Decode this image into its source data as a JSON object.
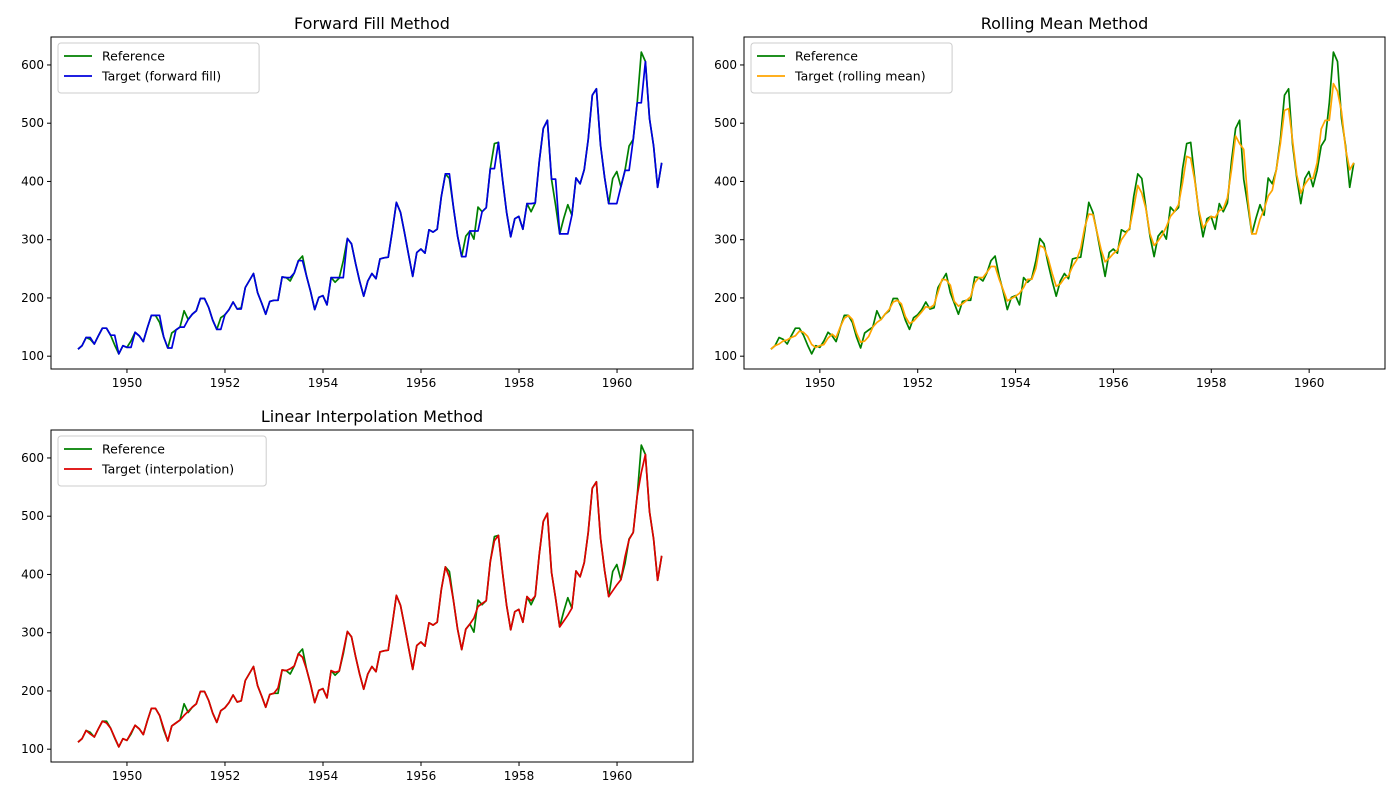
{
  "chart_data": [
    {
      "type": "line",
      "title": "Forward Fill Method",
      "xlabel": "",
      "ylabel": "",
      "x_start": 1949,
      "x_step": 0.0833,
      "xlim": [
        1948.45,
        1961.55
      ],
      "ylim": [
        78,
        648
      ],
      "xticks": [
        1950,
        1952,
        1954,
        1956,
        1958,
        1960
      ],
      "yticks": [
        100,
        200,
        300,
        400,
        500,
        600
      ],
      "grid": false,
      "legend_position": "top-left",
      "series": [
        {
          "name": "Reference",
          "color": "#008000",
          "values": [
            112,
            118,
            132,
            129,
            121,
            135,
            148,
            148,
            136,
            119,
            104,
            118,
            115,
            126,
            141,
            135,
            125,
            149,
            170,
            170,
            158,
            133,
            114,
            140,
            145,
            150,
            178,
            163,
            172,
            178,
            199,
            199,
            184,
            162,
            146,
            166,
            171,
            180,
            193,
            181,
            183,
            218,
            230,
            242,
            209,
            191,
            172,
            194,
            196,
            196,
            236,
            235,
            229,
            243,
            264,
            272,
            237,
            211,
            180,
            201,
            204,
            188,
            235,
            227,
            234,
            264,
            302,
            293,
            259,
            229,
            203,
            229,
            242,
            233,
            267,
            269,
            270,
            315,
            364,
            347,
            312,
            274,
            237,
            278,
            284,
            277,
            317,
            313,
            318,
            374,
            413,
            405,
            355,
            306,
            271,
            306,
            315,
            301,
            356,
            348,
            355,
            422,
            465,
            467,
            404,
            347,
            305,
            336,
            340,
            318,
            362,
            348,
            363,
            435,
            491,
            505,
            404,
            359,
            310,
            337,
            360,
            342,
            406,
            396,
            420,
            472,
            548,
            559,
            463,
            407,
            362,
            405,
            417,
            391,
            419,
            461,
            472,
            535,
            622,
            606,
            508,
            461,
            390,
            432
          ]
        },
        {
          "name": "Target (forward fill)",
          "color": "#0000dd",
          "values": [
            112,
            118,
            132,
            132,
            121,
            135,
            148,
            148,
            136,
            136,
            104,
            118,
            115,
            115,
            141,
            135,
            125,
            149,
            170,
            170,
            170,
            133,
            114,
            114,
            145,
            150,
            150,
            163,
            172,
            178,
            199,
            199,
            184,
            162,
            146,
            146,
            171,
            180,
            193,
            181,
            181,
            218,
            230,
            242,
            209,
            191,
            172,
            194,
            196,
            196,
            236,
            235,
            235,
            243,
            264,
            264,
            237,
            211,
            180,
            201,
            204,
            188,
            235,
            235,
            235,
            235,
            302,
            293,
            259,
            229,
            203,
            229,
            242,
            233,
            267,
            269,
            270,
            315,
            364,
            347,
            312,
            274,
            237,
            278,
            284,
            277,
            317,
            313,
            318,
            374,
            413,
            413,
            355,
            306,
            271,
            271,
            315,
            315,
            315,
            348,
            355,
            422,
            422,
            467,
            404,
            347,
            305,
            336,
            340,
            318,
            362,
            362,
            363,
            435,
            491,
            505,
            404,
            404,
            310,
            310,
            310,
            342,
            406,
            396,
            420,
            472,
            548,
            559,
            463,
            407,
            362,
            362,
            362,
            391,
            419,
            419,
            472,
            535,
            535,
            606,
            508,
            461,
            390,
            432
          ]
        }
      ]
    },
    {
      "type": "line",
      "title": "Rolling Mean Method",
      "xlabel": "",
      "ylabel": "",
      "x_start": 1949,
      "x_step": 0.0833,
      "xlim": [
        1948.45,
        1961.55
      ],
      "ylim": [
        78,
        648
      ],
      "xticks": [
        1950,
        1952,
        1954,
        1956,
        1958,
        1960
      ],
      "yticks": [
        100,
        200,
        300,
        400,
        500,
        600
      ],
      "grid": false,
      "legend_position": "top-left",
      "series": [
        {
          "name": "Reference",
          "color": "#008000",
          "values": [
            112,
            118,
            132,
            129,
            121,
            135,
            148,
            148,
            136,
            119,
            104,
            118,
            115,
            126,
            141,
            135,
            125,
            149,
            170,
            170,
            158,
            133,
            114,
            140,
            145,
            150,
            178,
            163,
            172,
            178,
            199,
            199,
            184,
            162,
            146,
            166,
            171,
            180,
            193,
            181,
            183,
            218,
            230,
            242,
            209,
            191,
            172,
            194,
            196,
            196,
            236,
            235,
            229,
            243,
            264,
            272,
            237,
            211,
            180,
            201,
            204,
            188,
            235,
            227,
            234,
            264,
            302,
            293,
            259,
            229,
            203,
            229,
            242,
            233,
            267,
            269,
            270,
            315,
            364,
            347,
            312,
            274,
            237,
            278,
            284,
            277,
            317,
            313,
            318,
            374,
            413,
            405,
            355,
            306,
            271,
            306,
            315,
            301,
            356,
            348,
            355,
            422,
            465,
            467,
            404,
            347,
            305,
            336,
            340,
            318,
            362,
            348,
            363,
            435,
            491,
            505,
            404,
            359,
            310,
            337,
            360,
            342,
            406,
            396,
            420,
            472,
            548,
            559,
            463,
            407,
            362,
            405,
            417,
            391,
            419,
            461,
            472,
            535,
            622,
            606,
            508,
            461,
            390,
            432
          ]
        },
        {
          "name": "Target (rolling mean)",
          "color": "#ffa500",
          "values": [
            112,
            118,
            121,
            126,
            128,
            132,
            135,
            143,
            141,
            134,
            120,
            115,
            118,
            120,
            131,
            138,
            132,
            150,
            165,
            170,
            163,
            140,
            124,
            126,
            134,
            150,
            158,
            163,
            172,
            180,
            193,
            196,
            190,
            168,
            156,
            160,
            168,
            176,
            185,
            183,
            188,
            210,
            232,
            231,
            222,
            194,
            186,
            190,
            196,
            202,
            226,
            235,
            235,
            244,
            254,
            254,
            232,
            214,
            195,
            199,
            203,
            208,
            218,
            232,
            232,
            251,
            290,
            286,
            268,
            242,
            220,
            224,
            234,
            238,
            254,
            265,
            285,
            322,
            344,
            343,
            313,
            283,
            262,
            268,
            276,
            282,
            300,
            310,
            320,
            355,
            393,
            380,
            353,
            310,
            290,
            298,
            308,
            322,
            340,
            348,
            360,
            398,
            443,
            440,
            401,
            350,
            320,
            330,
            340,
            338,
            350,
            353,
            372,
            420,
            478,
            465,
            455,
            370,
            310,
            310,
            335,
            352,
            375,
            385,
            420,
            465,
            522,
            525,
            470,
            412,
            380,
            395,
            405,
            405,
            432,
            490,
            505,
            505,
            568,
            555,
            520,
            456,
            420,
            432
          ]
        }
      ]
    },
    {
      "type": "line",
      "title": "Linear Interpolation Method",
      "xlabel": "",
      "ylabel": "",
      "x_start": 1949,
      "x_step": 0.0833,
      "xlim": [
        1948.45,
        1961.55
      ],
      "ylim": [
        78,
        648
      ],
      "xticks": [
        1950,
        1952,
        1954,
        1956,
        1958,
        1960
      ],
      "yticks": [
        100,
        200,
        300,
        400,
        500,
        600
      ],
      "grid": false,
      "legend_position": "top-left",
      "series": [
        {
          "name": "Reference",
          "color": "#008000",
          "values": [
            112,
            118,
            132,
            129,
            121,
            135,
            148,
            148,
            136,
            119,
            104,
            118,
            115,
            126,
            141,
            135,
            125,
            149,
            170,
            170,
            158,
            133,
            114,
            140,
            145,
            150,
            178,
            163,
            172,
            178,
            199,
            199,
            184,
            162,
            146,
            166,
            171,
            180,
            193,
            181,
            183,
            218,
            230,
            242,
            209,
            191,
            172,
            194,
            196,
            196,
            236,
            235,
            229,
            243,
            264,
            272,
            237,
            211,
            180,
            201,
            204,
            188,
            235,
            227,
            234,
            264,
            302,
            293,
            259,
            229,
            203,
            229,
            242,
            233,
            267,
            269,
            270,
            315,
            364,
            347,
            312,
            274,
            237,
            278,
            284,
            277,
            317,
            313,
            318,
            374,
            413,
            405,
            355,
            306,
            271,
            306,
            315,
            301,
            356,
            348,
            355,
            422,
            465,
            467,
            404,
            347,
            305,
            336,
            340,
            318,
            362,
            348,
            363,
            435,
            491,
            505,
            404,
            359,
            310,
            337,
            360,
            342,
            406,
            396,
            420,
            472,
            548,
            559,
            463,
            407,
            362,
            405,
            417,
            391,
            419,
            461,
            472,
            535,
            622,
            606,
            508,
            461,
            390,
            432
          ]
        },
        {
          "name": "Target (interpolation)",
          "color": "#dd0000",
          "values": [
            112,
            118,
            132,
            126,
            121,
            135,
            148,
            145,
            136,
            120,
            104,
            118,
            115,
            128,
            141,
            135,
            125,
            149,
            170,
            170,
            158,
            136,
            114,
            140,
            145,
            150,
            158,
            165,
            172,
            178,
            199,
            199,
            184,
            162,
            146,
            166,
            171,
            180,
            193,
            181,
            183,
            218,
            230,
            242,
            209,
            191,
            172,
            194,
            196,
            205,
            236,
            235,
            238,
            243,
            264,
            258,
            237,
            211,
            180,
            201,
            204,
            188,
            235,
            232,
            234,
            268,
            302,
            293,
            259,
            229,
            203,
            229,
            242,
            233,
            267,
            269,
            270,
            315,
            364,
            347,
            312,
            274,
            237,
            278,
            284,
            277,
            317,
            313,
            318,
            374,
            413,
            395,
            355,
            306,
            271,
            306,
            315,
            325,
            345,
            350,
            355,
            422,
            458,
            467,
            404,
            347,
            305,
            336,
            340,
            318,
            362,
            355,
            363,
            435,
            491,
            505,
            404,
            359,
            310,
            320,
            330,
            342,
            406,
            396,
            420,
            472,
            548,
            559,
            463,
            407,
            362,
            372,
            382,
            391,
            430,
            460,
            472,
            535,
            575,
            606,
            508,
            461,
            390,
            432
          ]
        }
      ]
    }
  ]
}
